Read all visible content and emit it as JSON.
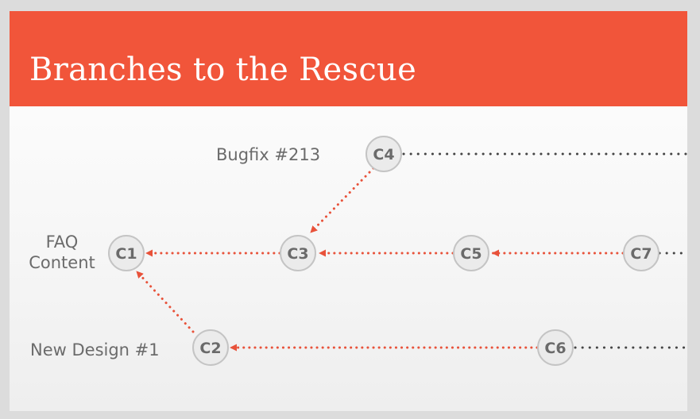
{
  "slide": {
    "title": "Branches to the Rescue"
  },
  "branches": {
    "bugfix": "Bugfix #213",
    "faq_line1": "FAQ",
    "faq_line2": "Content",
    "new_design": "New Design #1"
  },
  "commits": {
    "c1": "C1",
    "c2": "C2",
    "c3": "C3",
    "c4": "C4",
    "c5": "C5",
    "c6": "C6",
    "c7": "C7"
  },
  "colors": {
    "header": "#f1553a",
    "arrow": "#e8523a",
    "continuation_dots": "#444444",
    "node_fill": "#ebebeb",
    "node_stroke": "#c4c4c4"
  }
}
